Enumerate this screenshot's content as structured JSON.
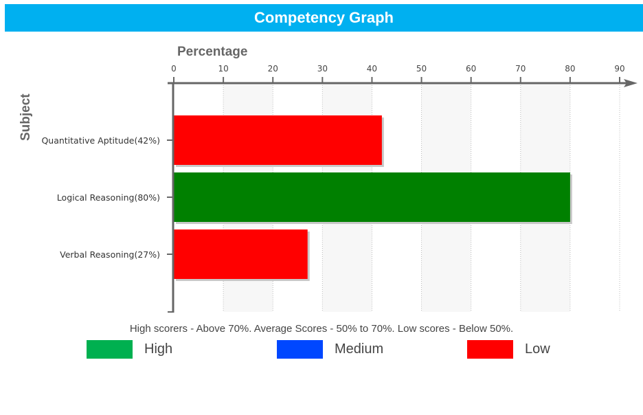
{
  "title": "Competency Graph",
  "chart_data": {
    "type": "bar",
    "orientation": "horizontal",
    "xlabel": "Percentage",
    "ylabel": "Subject",
    "xlim": [
      0,
      90
    ],
    "xticks": [
      0,
      10,
      20,
      30,
      40,
      50,
      60,
      70,
      80,
      90
    ],
    "categories": [
      "Quantitative Aptitude(42%)",
      "Logical Reasoning(80%)",
      "Verbal Reasoning(27%)"
    ],
    "values": [
      42,
      80,
      27
    ],
    "bar_levels": [
      "Low",
      "High",
      "Low"
    ],
    "grid": "vertical dotted lines with alternating light bands",
    "x_axis_position": "top"
  },
  "note": "High scorers - Above 70%. Average Scores - 50% to 70%. Low scores - Below 50%.",
  "legend": [
    {
      "label": "High",
      "color": "#00b050"
    },
    {
      "label": "Medium",
      "color": "#0047ff"
    },
    {
      "label": "Low",
      "color": "#ff0000"
    }
  ],
  "colors": {
    "high_bar": "#008000",
    "low_bar": "#ff0000",
    "title_background": "#00b0f0",
    "axis": "#666666"
  }
}
